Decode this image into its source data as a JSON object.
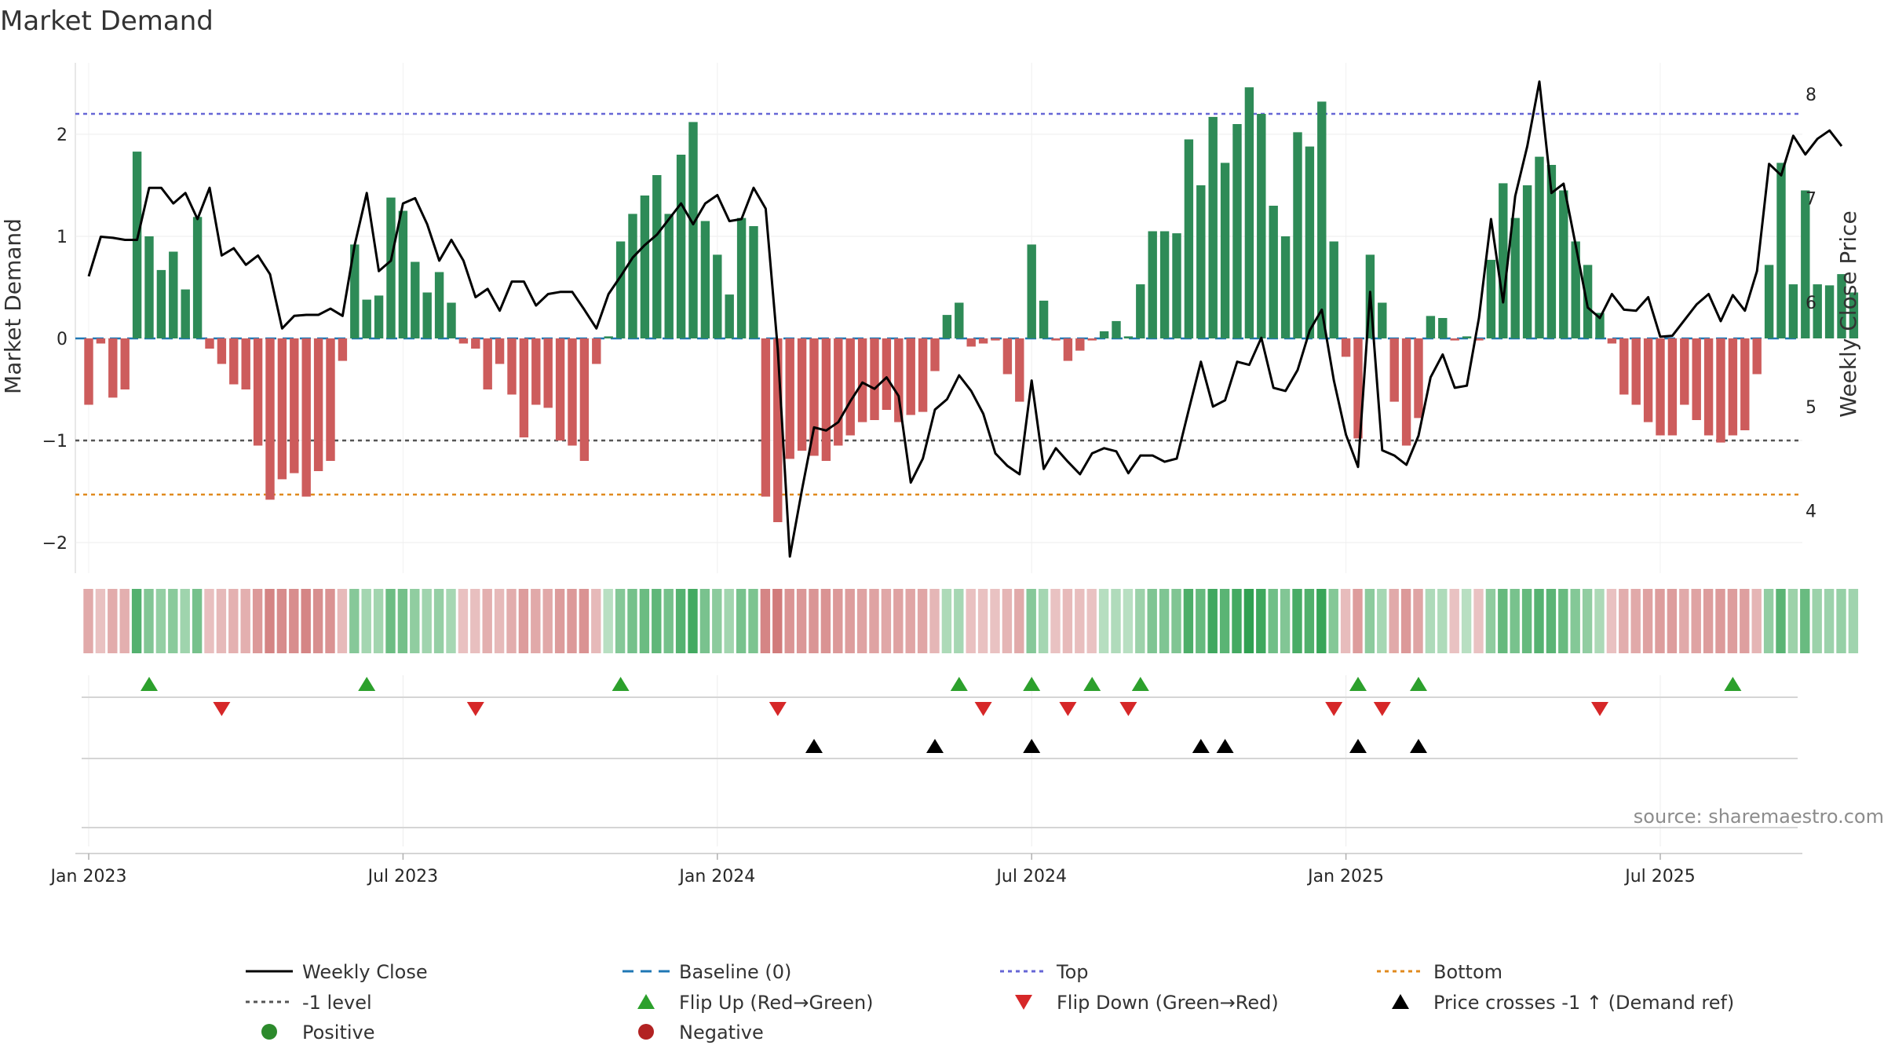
{
  "chart_data": {
    "type": "bar+line",
    "title": "Market Demand",
    "ylabel_left": "Market Demand",
    "ylabel_right": "Weekly Close Price",
    "source": "source: sharemaestro.com",
    "ylim_left": [
      -2.3,
      2.7
    ],
    "ylim_right": [
      3.4,
      8.3
    ],
    "yticks_left": [
      {
        "v": -2,
        "label": "−2"
      },
      {
        "v": -1,
        "label": "−1"
      },
      {
        "v": 0,
        "label": "0"
      },
      {
        "v": 1,
        "label": "1"
      },
      {
        "v": 2,
        "label": "2"
      }
    ],
    "yticks_right": [
      {
        "v": 4,
        "label": "4"
      },
      {
        "v": 5,
        "label": "5"
      },
      {
        "v": 6,
        "label": "6"
      },
      {
        "v": 7,
        "label": "7"
      },
      {
        "v": 8,
        "label": "8"
      }
    ],
    "x_ticks": [
      {
        "week": 0,
        "label": "Jan 2023"
      },
      {
        "week": 26,
        "label": "Jul 2023"
      },
      {
        "week": 52,
        "label": "Jan 2024"
      },
      {
        "week": 78,
        "label": "Jul 2024"
      },
      {
        "week": 104,
        "label": "Jan 2025"
      },
      {
        "week": 130,
        "label": "Jul 2025"
      }
    ],
    "reference_lines": {
      "top": 2.2,
      "minus_one": -1,
      "bottom": -1.53,
      "baseline": 0
    },
    "demand": [
      -0.65,
      -0.05,
      -0.58,
      -0.5,
      1.83,
      1.0,
      0.67,
      0.85,
      0.48,
      1.19,
      -0.1,
      -0.25,
      -0.45,
      -0.5,
      -1.05,
      -1.58,
      -1.38,
      -1.32,
      -1.55,
      -1.3,
      -1.2,
      -0.22,
      0.92,
      0.38,
      0.42,
      1.38,
      1.25,
      0.75,
      0.45,
      0.65,
      0.35,
      -0.05,
      -0.1,
      -0.5,
      -0.25,
      -0.55,
      -0.97,
      -0.65,
      -0.68,
      -1.0,
      -1.05,
      -1.2,
      -0.25,
      0.02,
      0.95,
      1.22,
      1.4,
      1.6,
      1.22,
      1.8,
      2.12,
      1.15,
      0.82,
      0.43,
      1.18,
      1.1,
      -1.55,
      -1.8,
      -1.18,
      -1.1,
      -1.15,
      -1.2,
      -1.05,
      -0.95,
      -0.82,
      -0.8,
      -0.7,
      -0.82,
      -0.75,
      -0.72,
      -0.32,
      0.23,
      0.35,
      -0.08,
      -0.05,
      -0.02,
      -0.35,
      -0.62,
      0.92,
      0.37,
      -0.02,
      -0.22,
      -0.12,
      -0.02,
      0.07,
      0.17,
      0.02,
      0.53,
      1.05,
      1.05,
      1.03,
      1.95,
      1.5,
      2.17,
      1.72,
      2.1,
      2.46,
      2.2,
      1.3,
      1.0,
      2.02,
      1.88,
      2.32,
      0.95,
      -0.18,
      -0.98,
      0.82,
      0.35,
      -0.62,
      -1.05,
      -0.78,
      0.22,
      0.2,
      -0.02,
      0.02,
      -0.02,
      0.77,
      1.52,
      1.18,
      1.5,
      1.78,
      1.7,
      1.45,
      0.95,
      0.72,
      0.25,
      -0.05,
      -0.55,
      -0.65,
      -0.82,
      -0.95,
      -0.95,
      -0.65,
      -0.8,
      -0.95,
      -1.02,
      -0.95,
      -0.9,
      -0.35,
      0.72,
      1.72,
      0.53,
      1.45,
      0.53,
      0.52,
      0.63,
      0.45
    ],
    "weekly_close": [
      6.25,
      6.63,
      6.62,
      6.6,
      6.6,
      7.1,
      7.1,
      6.95,
      7.05,
      6.8,
      7.1,
      6.45,
      6.52,
      6.36,
      6.45,
      6.27,
      5.75,
      5.87,
      5.88,
      5.88,
      5.94,
      5.87,
      6.55,
      7.05,
      6.3,
      6.4,
      6.95,
      7.0,
      6.75,
      6.4,
      6.6,
      6.4,
      6.05,
      6.13,
      5.92,
      6.2,
      6.2,
      5.97,
      6.08,
      6.1,
      6.1,
      5.93,
      5.75,
      6.08,
      6.25,
      6.43,
      6.55,
      6.65,
      6.8,
      6.95,
      6.75,
      6.95,
      7.03,
      6.78,
      6.8,
      7.1,
      6.9,
      5.55,
      3.56,
      4.2,
      4.8,
      4.77,
      4.85,
      5.05,
      5.23,
      5.17,
      5.28,
      5.1,
      4.27,
      4.5,
      4.97,
      5.07,
      5.3,
      5.15,
      4.93,
      4.55,
      4.43,
      4.35,
      5.25,
      4.4,
      4.6,
      4.47,
      4.35,
      4.55,
      4.6,
      4.57,
      4.36,
      4.53,
      4.53,
      4.47,
      4.5,
      4.97,
      5.43,
      5.0,
      5.06,
      5.43,
      5.4,
      5.66,
      5.18,
      5.15,
      5.35,
      5.73,
      5.93,
      5.25,
      4.73,
      4.42,
      6.1,
      4.58,
      4.53,
      4.44,
      4.72,
      5.28,
      5.5,
      5.18,
      5.2,
      5.85,
      6.8,
      6.0,
      7.02,
      7.5,
      8.12,
      7.05,
      7.14,
      6.55,
      5.95,
      5.85,
      6.08,
      5.93,
      5.92,
      6.05,
      5.67,
      5.68,
      5.83,
      5.98,
      6.08,
      5.82,
      6.07,
      5.92,
      6.3,
      7.33,
      7.22,
      7.6,
      7.42,
      7.57,
      7.65,
      7.5
    ],
    "flip_up_weeks": [
      5,
      23,
      44,
      72,
      78,
      83,
      87,
      105,
      110,
      136
    ],
    "flip_down_weeks": [
      11,
      32,
      57,
      74,
      81,
      86,
      103,
      107,
      125
    ],
    "price_cross_weeks": [
      60,
      70,
      78,
      92,
      94,
      105,
      110
    ],
    "legend": [
      {
        "label": "Weekly Close",
        "symbol": "line-solid",
        "color": "#000000"
      },
      {
        "label": "Baseline (0)",
        "symbol": "line-dashed",
        "color": "#1f77b4"
      },
      {
        "label": "Top",
        "symbol": "line-dotted",
        "color": "#6666d6"
      },
      {
        "label": "Bottom",
        "symbol": "line-dotted",
        "color": "#e08a1e"
      },
      {
        "label": "-1 level",
        "symbol": "line-dotted",
        "color": "#555555"
      },
      {
        "label": "Flip Up (Red→Green)",
        "symbol": "triangle-up",
        "color": "#2ca02c"
      },
      {
        "label": "Flip Down (Green→Red)",
        "symbol": "triangle-down",
        "color": "#d62728"
      },
      {
        "label": "Price crosses -1 ↑ (Demand ref)",
        "symbol": "triangle-up",
        "color": "#000000"
      },
      {
        "label": "Positive",
        "symbol": "circle",
        "color": "#2c8a2c"
      },
      {
        "label": "Negative",
        "symbol": "circle",
        "color": "#b22222"
      }
    ],
    "colors": {
      "positive_bar": "#2e8b57",
      "negative_bar": "#cd5c5c",
      "close_line": "#000000",
      "grid": "#e5e5e5"
    }
  }
}
